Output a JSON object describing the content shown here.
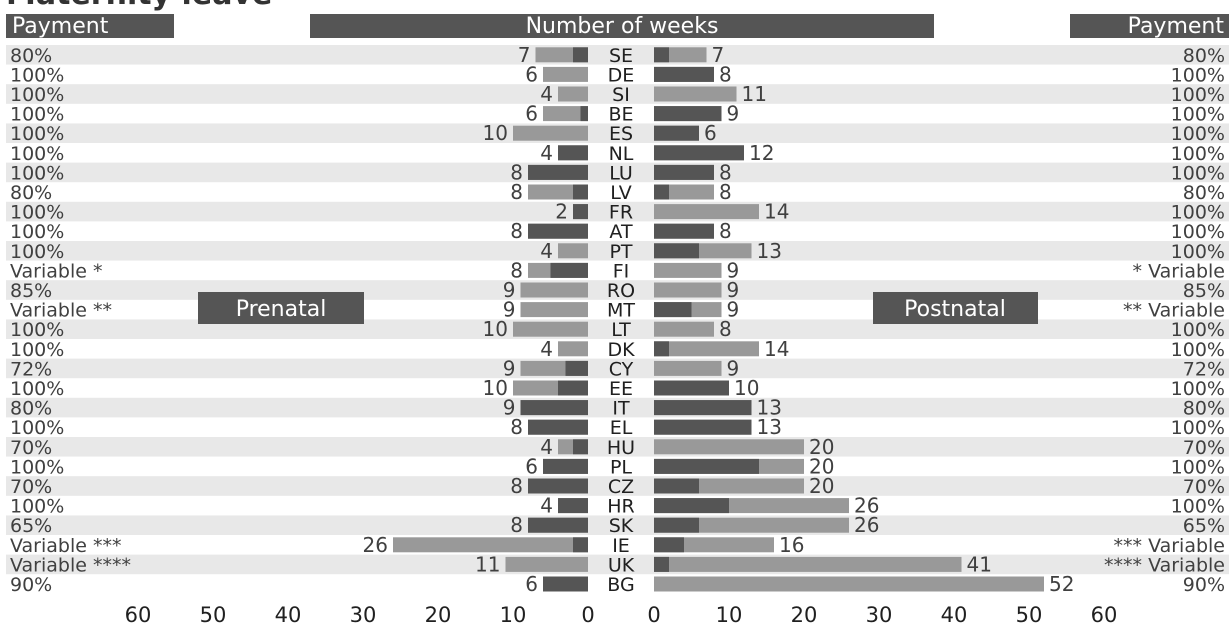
{
  "chart_data": {
    "type": "bar",
    "title": "Maternity leave",
    "headers": {
      "left_payment": "Payment",
      "center": "Number of weeks",
      "right_payment": "Payment"
    },
    "series_labels": {
      "prenatal": "Prenatal",
      "postnatal": "Postnatal"
    },
    "x_ticks_left": [
      60,
      50,
      40,
      30,
      20,
      10,
      0
    ],
    "x_ticks_right": [
      0,
      10,
      20,
      30,
      40,
      50,
      60
    ],
    "xlim": [
      0,
      60
    ],
    "colors": {
      "dark": "#555555",
      "light": "#999999",
      "band": "#e8e8e8",
      "header": "#555555"
    },
    "rows": [
      {
        "country": "SE",
        "payment_left": "80%",
        "payment_right": "80%",
        "pre_total": 7,
        "pre_dark": 2,
        "post_total": 7,
        "post_dark": 2
      },
      {
        "country": "DE",
        "payment_left": "100%",
        "payment_right": "100%",
        "pre_total": 6,
        "pre_dark": 0,
        "post_total": 8,
        "post_dark": 8
      },
      {
        "country": "SI",
        "payment_left": "100%",
        "payment_right": "100%",
        "pre_total": 4,
        "pre_dark": 0,
        "post_total": 11,
        "post_dark": 0
      },
      {
        "country": "BE",
        "payment_left": "100%",
        "payment_right": "100%",
        "pre_total": 6,
        "pre_dark": 1,
        "post_total": 9,
        "post_dark": 9
      },
      {
        "country": "ES",
        "payment_left": "100%",
        "payment_right": "100%",
        "pre_total": 10,
        "pre_dark": 0,
        "post_total": 6,
        "post_dark": 6
      },
      {
        "country": "NL",
        "payment_left": "100%",
        "payment_right": "100%",
        "pre_total": 4,
        "pre_dark": 4,
        "post_total": 12,
        "post_dark": 12
      },
      {
        "country": "LU",
        "payment_left": "100%",
        "payment_right": "100%",
        "pre_total": 8,
        "pre_dark": 8,
        "post_total": 8,
        "post_dark": 8
      },
      {
        "country": "LV",
        "payment_left": "80%",
        "payment_right": "80%",
        "pre_total": 8,
        "pre_dark": 2,
        "post_total": 8,
        "post_dark": 2
      },
      {
        "country": "FR",
        "payment_left": "100%",
        "payment_right": "100%",
        "pre_total": 2,
        "pre_dark": 2,
        "post_total": 14,
        "post_dark": 0
      },
      {
        "country": "AT",
        "payment_left": "100%",
        "payment_right": "100%",
        "pre_total": 8,
        "pre_dark": 8,
        "post_total": 8,
        "post_dark": 8
      },
      {
        "country": "PT",
        "payment_left": "100%",
        "payment_right": "100%",
        "pre_total": 4,
        "pre_dark": 0,
        "post_total": 13,
        "post_dark": 6
      },
      {
        "country": "FI",
        "payment_left": "Variable *",
        "payment_right": "* Variable",
        "pre_total": 8,
        "pre_dark": 5,
        "post_total": 9,
        "post_dark": 0
      },
      {
        "country": "RO",
        "payment_left": "85%",
        "payment_right": "85%",
        "pre_total": 9,
        "pre_dark": 0,
        "post_total": 9,
        "post_dark": 0
      },
      {
        "country": "MT",
        "payment_left": "Variable **",
        "payment_right": "** Variable",
        "pre_total": 9,
        "pre_dark": 0,
        "post_total": 9,
        "post_dark": 5
      },
      {
        "country": "LT",
        "payment_left": "100%",
        "payment_right": "100%",
        "pre_total": 10,
        "pre_dark": 0,
        "post_total": 8,
        "post_dark": 0
      },
      {
        "country": "DK",
        "payment_left": "100%",
        "payment_right": "100%",
        "pre_total": 4,
        "pre_dark": 0,
        "post_total": 14,
        "post_dark": 2
      },
      {
        "country": "CY",
        "payment_left": "72%",
        "payment_right": "72%",
        "pre_total": 9,
        "pre_dark": 3,
        "post_total": 9,
        "post_dark": 0
      },
      {
        "country": "EE",
        "payment_left": "100%",
        "payment_right": "100%",
        "pre_total": 10,
        "pre_dark": 4,
        "post_total": 10,
        "post_dark": 10
      },
      {
        "country": "IT",
        "payment_left": "80%",
        "payment_right": "80%",
        "pre_total": 9,
        "pre_dark": 9,
        "post_total": 13,
        "post_dark": 13
      },
      {
        "country": "EL",
        "payment_left": "100%",
        "payment_right": "100%",
        "pre_total": 8,
        "pre_dark": 8,
        "post_total": 13,
        "post_dark": 13
      },
      {
        "country": "HU",
        "payment_left": "70%",
        "payment_right": "70%",
        "pre_total": 4,
        "pre_dark": 2,
        "post_total": 20,
        "post_dark": 0
      },
      {
        "country": "PL",
        "payment_left": "100%",
        "payment_right": "100%",
        "pre_total": 6,
        "pre_dark": 6,
        "post_total": 20,
        "post_dark": 14
      },
      {
        "country": "CZ",
        "payment_left": "70%",
        "payment_right": "70%",
        "pre_total": 8,
        "pre_dark": 8,
        "post_total": 20,
        "post_dark": 6
      },
      {
        "country": "HR",
        "payment_left": "100%",
        "payment_right": "100%",
        "pre_total": 4,
        "pre_dark": 4,
        "post_total": 26,
        "post_dark": 10
      },
      {
        "country": "SK",
        "payment_left": "65%",
        "payment_right": "65%",
        "pre_total": 8,
        "pre_dark": 8,
        "post_total": 26,
        "post_dark": 6
      },
      {
        "country": "IE",
        "payment_left": "Variable ***",
        "payment_right": "*** Variable",
        "pre_total": 26,
        "pre_dark": 2,
        "post_total": 16,
        "post_dark": 4
      },
      {
        "country": "UK",
        "payment_left": "Variable ****",
        "payment_right": "**** Variable",
        "pre_total": 11,
        "pre_dark": 0,
        "post_total": 41,
        "post_dark": 2
      },
      {
        "country": "BG",
        "payment_left": "90%",
        "payment_right": "90%",
        "pre_total": 6,
        "pre_dark": 6,
        "post_total": 52,
        "post_dark": 0
      }
    ]
  }
}
